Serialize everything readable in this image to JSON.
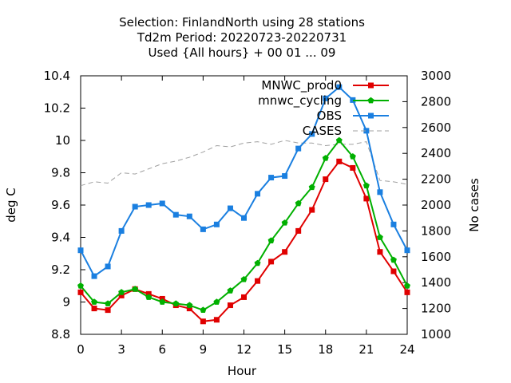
{
  "chart_data": {
    "type": "line",
    "title_lines": [
      "Selection: FinlandNorth using    28 stations",
      "Td2m   Period: 20220723-20220731",
      "Used {All hours} + 00 01 ... 09"
    ],
    "xlabel": "Hour",
    "ylabel": "deg C",
    "y2label": "No cases",
    "xlim": [
      0,
      24
    ],
    "ylim": [
      8.8,
      10.4
    ],
    "y2lim": [
      1000,
      3000
    ],
    "xticks": [
      "0",
      "3",
      "6",
      "9",
      "12",
      "15",
      "18",
      "21",
      "24"
    ],
    "yticks": [
      "8.8",
      "9",
      "9.2",
      "9.4",
      "9.6",
      "9.8",
      "10",
      "10.2",
      "10.4"
    ],
    "y2ticks": [
      "1000",
      "1200",
      "1400",
      "1600",
      "1800",
      "2000",
      "2200",
      "2400",
      "2600",
      "2800",
      "3000"
    ],
    "grid": false,
    "legend_position": "top-right",
    "x": [
      0,
      1,
      2,
      3,
      4,
      5,
      6,
      7,
      8,
      9,
      10,
      11,
      12,
      13,
      14,
      15,
      16,
      17,
      18,
      19,
      20,
      21,
      22,
      23,
      24
    ],
    "series": [
      {
        "name": "MNWC_prod0",
        "color": "#e00000",
        "axis": "left",
        "marker": "square",
        "values": [
          9.06,
          8.96,
          8.95,
          9.04,
          9.08,
          9.05,
          9.02,
          8.98,
          8.96,
          8.88,
          8.89,
          8.98,
          9.03,
          9.13,
          9.25,
          9.31,
          9.44,
          9.57,
          9.76,
          9.87,
          9.83,
          9.64,
          9.31,
          9.19,
          9.06
        ]
      },
      {
        "name": "mnwc_cycling",
        "color": "#00b000",
        "axis": "left",
        "marker": "pentagon",
        "values": [
          9.1,
          9.0,
          8.99,
          9.06,
          9.08,
          9.03,
          9.0,
          8.99,
          8.98,
          8.95,
          9.0,
          9.07,
          9.14,
          9.24,
          9.38,
          9.49,
          9.61,
          9.71,
          9.89,
          10.0,
          9.9,
          9.72,
          9.4,
          9.26,
          9.1
        ]
      },
      {
        "name": "OBS",
        "color": "#1a7fe0",
        "axis": "left",
        "marker": "square",
        "values": [
          9.32,
          9.16,
          9.22,
          9.44,
          9.59,
          9.6,
          9.61,
          9.54,
          9.53,
          9.45,
          9.48,
          9.58,
          9.52,
          9.67,
          9.77,
          9.78,
          9.95,
          10.04,
          10.26,
          10.33,
          10.25,
          10.06,
          9.68,
          9.48,
          9.32
        ]
      },
      {
        "name": "CASES",
        "color": "#a0a0a0",
        "axis": "right",
        "marker": "none",
        "dashed": true,
        "values": [
          2150,
          2180,
          2170,
          2250,
          2240,
          2280,
          2320,
          2340,
          2370,
          2410,
          2460,
          2450,
          2480,
          2490,
          2470,
          2500,
          2480,
          2480,
          2460,
          2470,
          2470,
          2490,
          2190,
          2180,
          2160
        ]
      }
    ]
  }
}
